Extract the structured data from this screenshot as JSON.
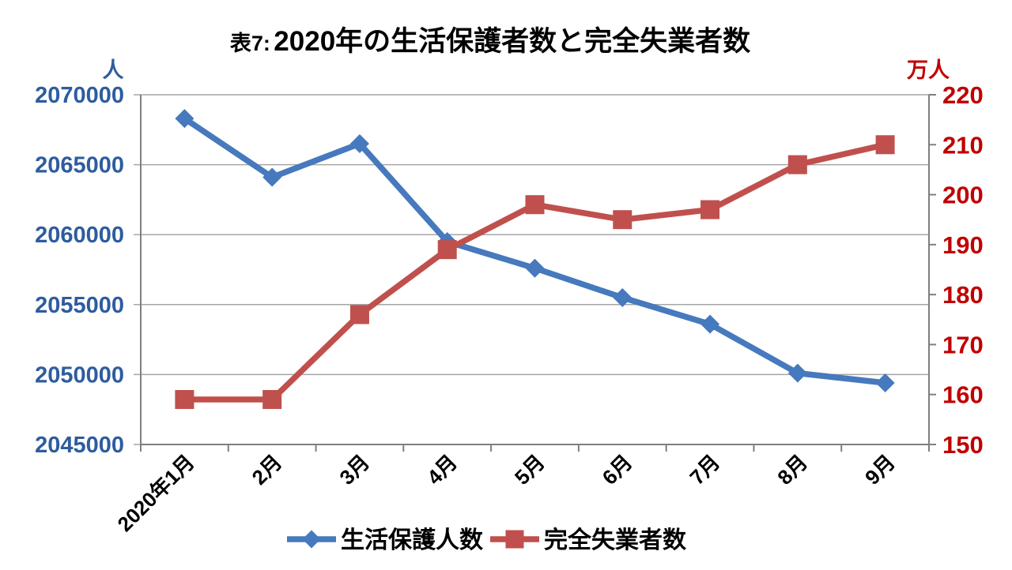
{
  "title": {
    "prefix": "表7:",
    "main": "2020年の生活保護者数と完全失業者数"
  },
  "chart_data": {
    "type": "line",
    "title": "表7:2020年の生活保護者数と完全失業者数",
    "categories": [
      "2020年1月",
      "2月",
      "3月",
      "4月",
      "5月",
      "6月",
      "7月",
      "8月",
      "9月"
    ],
    "series": [
      {
        "name": "生活保護人数",
        "axis": "left",
        "color": "#4679BD",
        "marker": "diamond",
        "values": [
          2068300,
          2064100,
          2066500,
          2059500,
          2057600,
          2055500,
          2053600,
          2050100,
          2049400
        ]
      },
      {
        "name": "完全失業者数",
        "axis": "right",
        "color": "#C0504D",
        "marker": "square",
        "values": [
          159,
          159,
          176,
          189,
          198,
          195,
          197,
          206,
          210
        ]
      }
    ],
    "left_axis": {
      "title": "人",
      "min": 2045000,
      "max": 2070000,
      "step": 5000,
      "color": "#2E5C9E"
    },
    "right_axis": {
      "title": "万人",
      "min": 150,
      "max": 220,
      "step": 10,
      "color": "#C00000"
    },
    "grid": true,
    "legend_position": "bottom",
    "gridline_color": "#A6A6A6",
    "frame_color": "#7F7F7F",
    "x_label_color": "#000000",
    "legend_text_color": "#000000"
  }
}
